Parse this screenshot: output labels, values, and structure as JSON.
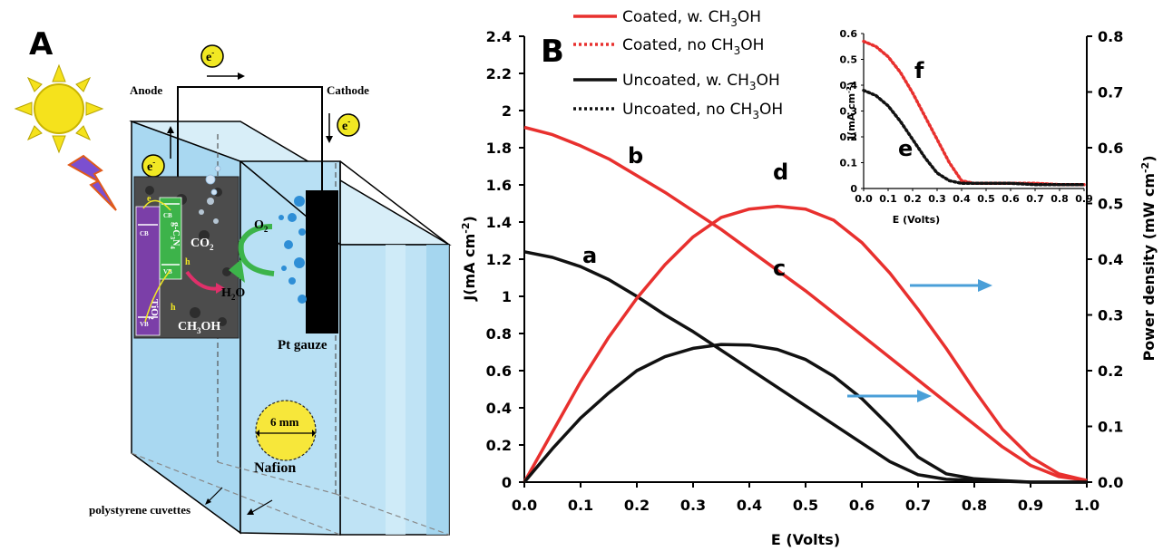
{
  "panels": {
    "a": "A",
    "b": "B"
  },
  "schematic": {
    "anode": "Anode",
    "cathode": "Cathode",
    "electron": "e",
    "electron_sup": "-",
    "o2": "O",
    "o2_sub": "2",
    "h2o_a": "H",
    "h2o_sub": "2",
    "h2o_b": "O",
    "co2": "CO",
    "co2_sub": "2",
    "ch3oh": "CH",
    "ch3oh_sub": "3",
    "ch3oh_end": "OH",
    "pt_gauze": "Pt gauze",
    "nafion": "Nafion",
    "hole_size": "6 mm",
    "cuvettes": "polystyrene cuvettes",
    "tio2": "TiO",
    "tio2_sub": "2",
    "gcn": "g-C",
    "gcn_sub3": "3",
    "gcn_n": "N",
    "gcn_sub4": "4",
    "cb": "CB",
    "vb": "VB",
    "h_plus": "h"
  },
  "legend": {
    "items": [
      {
        "pre": "Coated, w. CH",
        "sub": "3",
        "post": "OH"
      },
      {
        "pre": "Coated, no CH",
        "sub": "3",
        "post": "OH"
      },
      {
        "pre": "Uncoated, w. CH",
        "sub": "3",
        "post": "OH"
      },
      {
        "pre": "Uncoated, no CH",
        "sub": "3",
        "post": "OH"
      }
    ]
  },
  "colors": {
    "coated": "#e8302e",
    "uncoated": "#111111",
    "arrow": "#4a9fd8",
    "sun": "#f5e21c"
  },
  "chart_data": [
    {
      "type": "line",
      "xlabel": "E (Volts)",
      "ylabel": "J(mA cm-2)",
      "ylabel_main": "J(mA cm",
      "ylabel_sup": "-2",
      "ylabel_close": ")",
      "y2label": "Power density (mW cm-2)",
      "y2label_main": "Power density (mW cm",
      "y2label_sup": "-2",
      "y2label_close": ")",
      "xlim": [
        0,
        1.0
      ],
      "ylim": [
        0,
        2.4
      ],
      "y2lim": [
        0,
        0.8
      ],
      "xticks": [
        "0.0",
        "0.1",
        "0.2",
        "0.3",
        "0.4",
        "0.5",
        "0.6",
        "0.7",
        "0.8",
        "0.9",
        "1.0"
      ],
      "yticks": [
        "0",
        "0.2",
        "0.4",
        "0.6",
        "0.8",
        "1",
        "1.2",
        "1.4",
        "1.6",
        "1.8",
        "2",
        "2.2",
        "2.4"
      ],
      "y2ticks": [
        "0.0",
        "0.1",
        "0.2",
        "0.3",
        "0.4",
        "0.5",
        "0.6",
        "0.7",
        "0.8"
      ],
      "series": [
        {
          "label": "b",
          "axis": "left",
          "style": "coated",
          "x": [
            0,
            0.05,
            0.1,
            0.15,
            0.2,
            0.25,
            0.3,
            0.35,
            0.4,
            0.45,
            0.5,
            0.55,
            0.6,
            0.65,
            0.7,
            0.75,
            0.8,
            0.85,
            0.9,
            0.95,
            1.0
          ],
          "y": [
            1.91,
            1.87,
            1.81,
            1.74,
            1.65,
            1.56,
            1.46,
            1.36,
            1.25,
            1.14,
            1.03,
            0.91,
            0.79,
            0.67,
            0.55,
            0.43,
            0.31,
            0.19,
            0.09,
            0.03,
            0.01
          ]
        },
        {
          "label": "a",
          "axis": "left",
          "style": "uncoated",
          "x": [
            0,
            0.05,
            0.1,
            0.15,
            0.2,
            0.25,
            0.3,
            0.35,
            0.4,
            0.45,
            0.5,
            0.55,
            0.6,
            0.65,
            0.7,
            0.75,
            0.8,
            0.85,
            0.9,
            1.0
          ],
          "y": [
            1.24,
            1.21,
            1.16,
            1.09,
            1.0,
            0.9,
            0.81,
            0.71,
            0.61,
            0.51,
            0.41,
            0.31,
            0.21,
            0.11,
            0.04,
            0.015,
            0.01,
            0.005,
            0.0,
            0.0
          ]
        },
        {
          "label": "d",
          "axis": "right",
          "style": "coated",
          "x": [
            0,
            0.05,
            0.1,
            0.15,
            0.2,
            0.25,
            0.3,
            0.35,
            0.4,
            0.45,
            0.5,
            0.55,
            0.6,
            0.65,
            0.7,
            0.75,
            0.8,
            0.85,
            0.9,
            0.95,
            1.0
          ],
          "y": [
            0,
            0.09,
            0.18,
            0.26,
            0.33,
            0.39,
            0.44,
            0.475,
            0.49,
            0.495,
            0.49,
            0.47,
            0.43,
            0.375,
            0.31,
            0.24,
            0.165,
            0.095,
            0.045,
            0.015,
            0.003
          ]
        },
        {
          "label": "c",
          "axis": "right",
          "style": "uncoated",
          "x": [
            0,
            0.05,
            0.1,
            0.15,
            0.2,
            0.25,
            0.3,
            0.35,
            0.4,
            0.45,
            0.5,
            0.55,
            0.6,
            0.65,
            0.7,
            0.75,
            0.8,
            0.85,
            0.9,
            1.0
          ],
          "y": [
            0,
            0.06,
            0.115,
            0.16,
            0.2,
            0.225,
            0.24,
            0.247,
            0.246,
            0.238,
            0.22,
            0.19,
            0.15,
            0.1,
            0.045,
            0.015,
            0.006,
            0.003,
            0.0,
            0.0
          ]
        }
      ],
      "annotations": [
        "a",
        "b",
        "c",
        "d"
      ]
    },
    {
      "type": "line",
      "xlabel": "E (Volts)",
      "ylabel": "J(mA cm-2)",
      "ylabel_main": "J(mA cm",
      "ylabel_sup": "-2",
      "ylabel_close": ")",
      "xlim": [
        0,
        0.9
      ],
      "ylim": [
        0,
        0.6
      ],
      "xticks": [
        "0.0",
        "0.1",
        "0.2",
        "0.3",
        "0.4",
        "0.5",
        "0.6",
        "0.7",
        "0.8",
        "0.9"
      ],
      "yticks": [
        "0",
        "0.1",
        "0.2",
        "0.3",
        "0.4",
        "0.5",
        "0.6"
      ],
      "series": [
        {
          "label": "f",
          "style": "coated-dotted",
          "x": [
            0,
            0.05,
            0.1,
            0.15,
            0.2,
            0.25,
            0.3,
            0.35,
            0.4,
            0.45,
            0.5,
            0.6,
            0.7,
            0.8,
            0.9
          ],
          "y": [
            0.57,
            0.55,
            0.51,
            0.45,
            0.37,
            0.28,
            0.19,
            0.1,
            0.03,
            0.02,
            0.02,
            0.02,
            0.02,
            0.015,
            0.015
          ]
        },
        {
          "label": "e",
          "style": "uncoated-dotted",
          "x": [
            0,
            0.05,
            0.1,
            0.15,
            0.2,
            0.25,
            0.3,
            0.35,
            0.4,
            0.5,
            0.6,
            0.7,
            0.8,
            0.9
          ],
          "y": [
            0.38,
            0.36,
            0.32,
            0.26,
            0.19,
            0.12,
            0.06,
            0.03,
            0.02,
            0.02,
            0.02,
            0.015,
            0.015,
            0.015
          ]
        }
      ],
      "annotations": [
        "e",
        "f"
      ]
    }
  ]
}
